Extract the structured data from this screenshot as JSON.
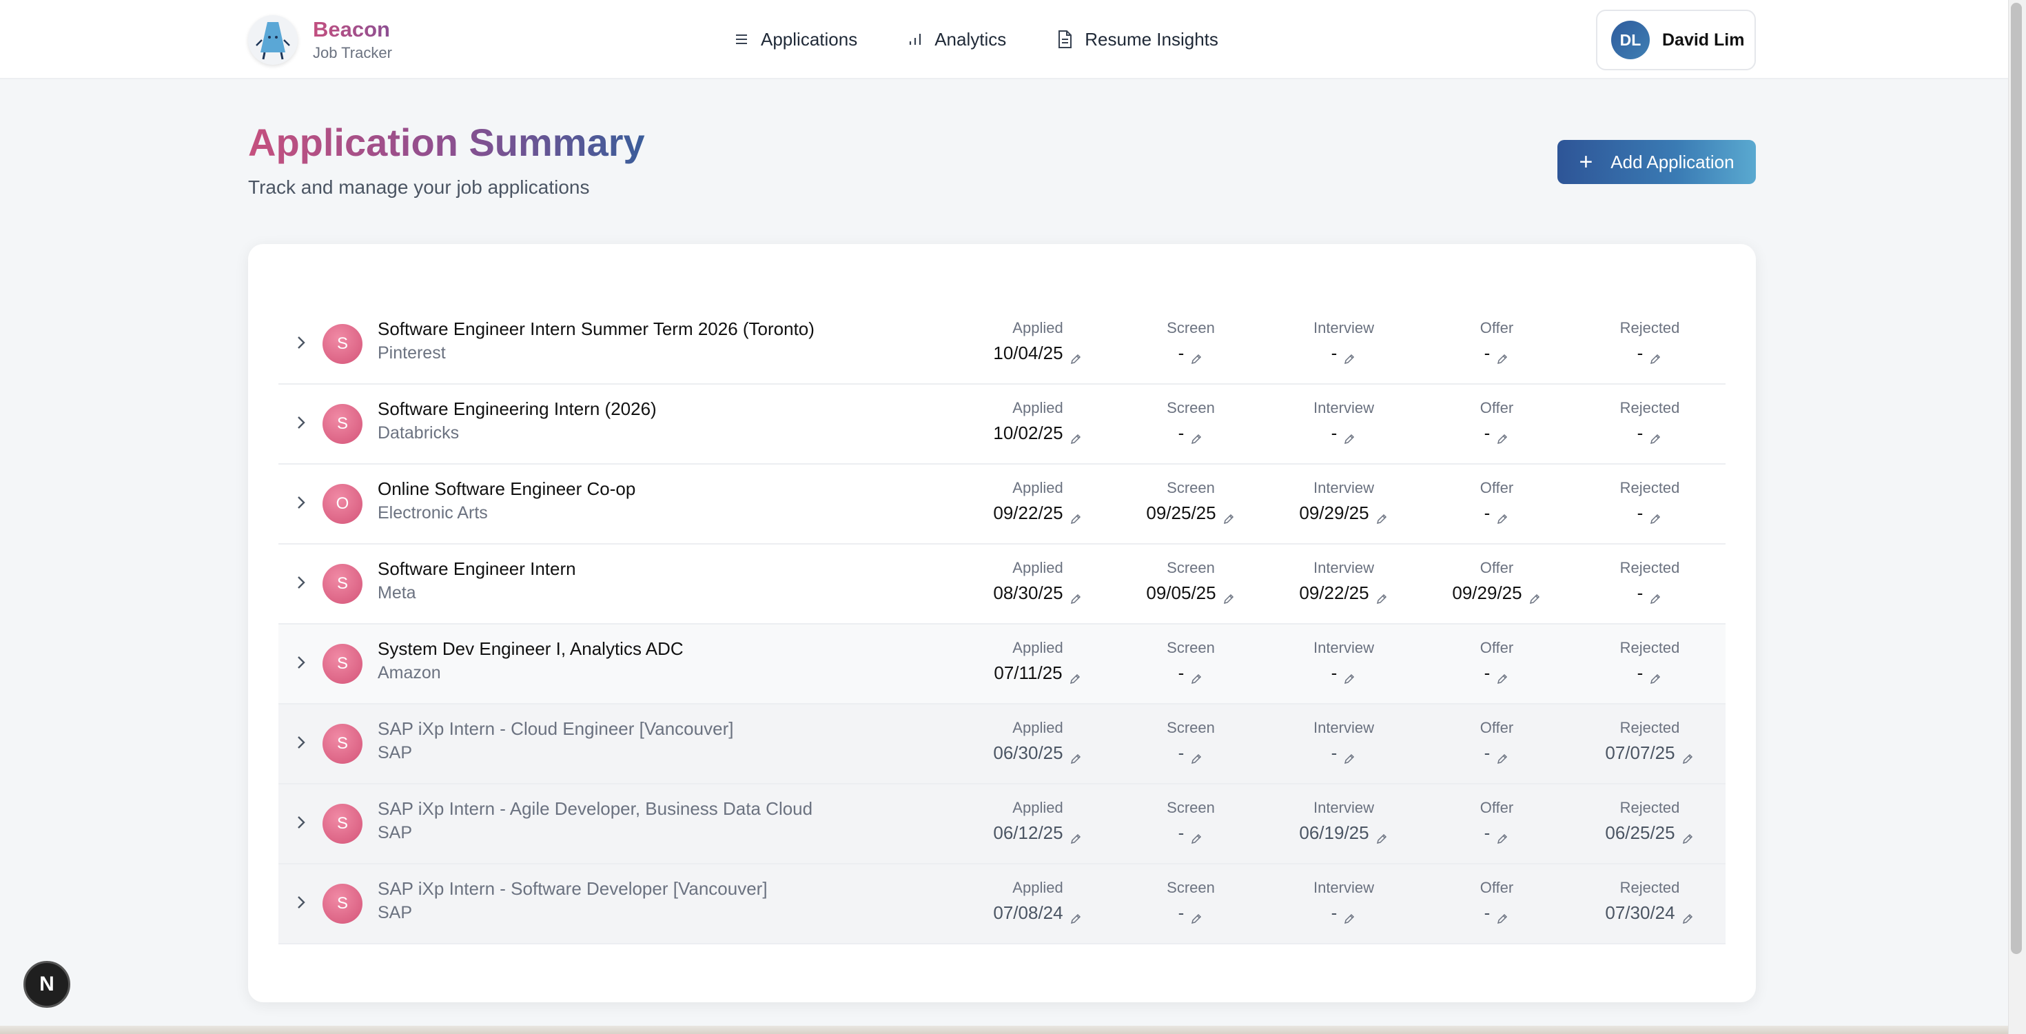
{
  "header": {
    "brand_name": "Beacon",
    "brand_sub": "Job Tracker",
    "nav": [
      {
        "label": "Applications",
        "icon": "list-icon"
      },
      {
        "label": "Analytics",
        "icon": "bar-chart-icon"
      },
      {
        "label": "Resume Insights",
        "icon": "document-icon"
      }
    ],
    "user": {
      "initials": "DL",
      "name": "David Lim"
    }
  },
  "page": {
    "title": "Application Summary",
    "subtitle": "Track and manage your job applications",
    "add_button": "Add Application"
  },
  "stage_labels": [
    "Applied",
    "Screen",
    "Interview",
    "Offer",
    "Rejected"
  ],
  "applications": [
    {
      "initial": "S",
      "title": "Software Engineer Intern Summer Term 2026 (Toronto)",
      "company": "Pinterest",
      "applied": "10/04/25",
      "screen": "-",
      "interview": "-",
      "offer": "-",
      "rejected": "-"
    },
    {
      "initial": "S",
      "title": "Software Engineering Intern (2026)",
      "company": "Databricks",
      "applied": "10/02/25",
      "screen": "-",
      "interview": "-",
      "offer": "-",
      "rejected": "-"
    },
    {
      "initial": "O",
      "title": "Online Software Engineer Co-op",
      "company": "Electronic Arts",
      "applied": "09/22/25",
      "screen": "09/25/25",
      "interview": "09/29/25",
      "offer": "-",
      "rejected": "-"
    },
    {
      "initial": "S",
      "title": "Software Engineer Intern",
      "company": "Meta",
      "applied": "08/30/25",
      "screen": "09/05/25",
      "interview": "09/22/25",
      "offer": "09/29/25",
      "rejected": "-"
    },
    {
      "initial": "S",
      "title": "System Dev Engineer I, Analytics ADC",
      "company": "Amazon",
      "applied": "07/11/25",
      "screen": "-",
      "interview": "-",
      "offer": "-",
      "rejected": "-"
    },
    {
      "initial": "S",
      "title": "SAP iXp Intern - Cloud Engineer [Vancouver]",
      "company": "SAP",
      "applied": "06/30/25",
      "screen": "-",
      "interview": "-",
      "offer": "-",
      "rejected": "07/07/25"
    },
    {
      "initial": "S",
      "title": "SAP iXp Intern - Agile Developer, Business Data Cloud",
      "company": "SAP",
      "applied": "06/12/25",
      "screen": "-",
      "interview": "06/19/25",
      "offer": "-",
      "rejected": "06/25/25"
    },
    {
      "initial": "S",
      "title": "SAP iXp Intern - Software Developer [Vancouver]",
      "company": "SAP",
      "applied": "07/08/24",
      "screen": "-",
      "interview": "-",
      "offer": "-",
      "rejected": "07/30/24"
    }
  ],
  "dev_badge": "N"
}
